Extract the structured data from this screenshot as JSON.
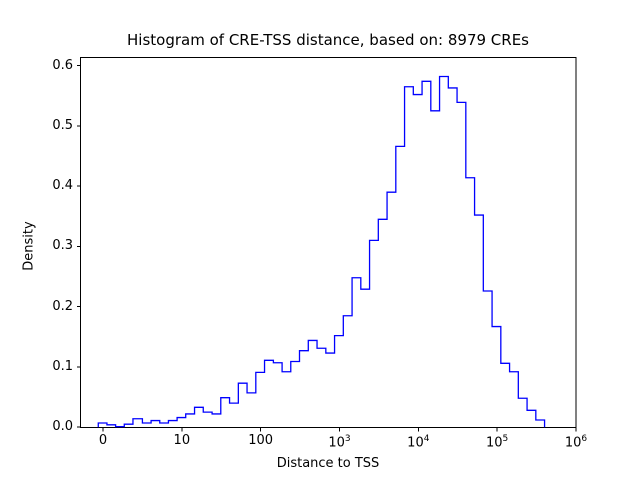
{
  "figure": {
    "background": "#ffffff",
    "spine_color": "#000000"
  },
  "chart_data": {
    "type": "histogram",
    "title": "Histogram of CRE-TSS distance, based on: 8979 CREs",
    "xlabel": "Distance to TSS",
    "ylabel": "Density",
    "x_scale": "symlog",
    "x_linthresh": 10,
    "xlim": [
      -3,
      1000000
    ],
    "ylim": [
      0,
      0.614
    ],
    "grid": false,
    "legend": "none",
    "series_color": "#0000ff",
    "x_ticks": [
      {
        "value": 0,
        "label": "0"
      },
      {
        "value": 10,
        "label": "10"
      },
      {
        "value": 100,
        "label": "100"
      },
      {
        "value": 1000,
        "label": "10^3"
      },
      {
        "value": 10000,
        "label": "10^4"
      },
      {
        "value": 100000,
        "label": "10^5"
      },
      {
        "value": 1000000,
        "label": "10^6"
      }
    ],
    "y_ticks": [
      {
        "value": 0.0,
        "label": "0.0"
      },
      {
        "value": 0.1,
        "label": "0.1"
      },
      {
        "value": 0.2,
        "label": "0.2"
      },
      {
        "value": 0.3,
        "label": "0.3"
      },
      {
        "value": 0.4,
        "label": "0.4"
      },
      {
        "value": 0.5,
        "label": "0.5"
      },
      {
        "value": 0.6,
        "label": "0.6"
      }
    ],
    "bin_edges": [
      -0.6,
      0.5,
      1.6,
      2.7,
      3.8,
      5.0,
      6.1,
      7.2,
      8.3,
      9.4,
      11.2,
      14.5,
      18.7,
      24.2,
      31.2,
      40.3,
      52.1,
      67.2,
      86.8,
      112,
      145,
      187,
      241,
      311,
      402,
      519,
      671,
      866,
      1118,
      1444,
      1864,
      2407,
      3108,
      4013,
      5182,
      6691,
      8639,
      11154,
      14403,
      18598,
      24015,
      31009,
      40041,
      51702,
      66760,
      86204,
      111307,
      143724,
      185580,
      239626,
      309417,
      399500
    ],
    "densities": [
      0.007,
      0.004,
      0.001,
      0.005,
      0.014,
      0.007,
      0.011,
      0.007,
      0.011,
      0.016,
      0.022,
      0.033,
      0.025,
      0.022,
      0.049,
      0.04,
      0.073,
      0.057,
      0.091,
      0.111,
      0.107,
      0.092,
      0.109,
      0.127,
      0.144,
      0.131,
      0.123,
      0.152,
      0.185,
      0.248,
      0.229,
      0.31,
      0.345,
      0.39,
      0.466,
      0.565,
      0.552,
      0.574,
      0.525,
      0.582,
      0.563,
      0.539,
      0.414,
      0.352,
      0.226,
      0.167,
      0.106,
      0.092,
      0.048,
      0.028,
      0.012
    ]
  }
}
